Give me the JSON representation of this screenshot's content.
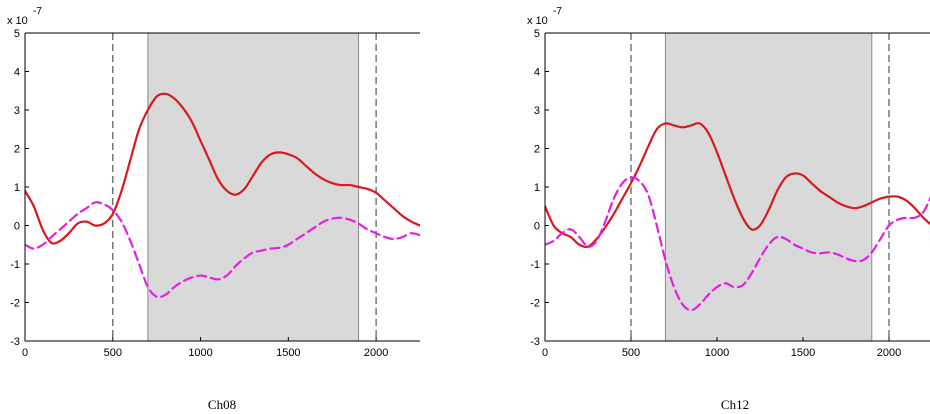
{
  "chart_data": [
    {
      "type": "line",
      "caption": "Ch08",
      "y_multiplier_base": "x 10",
      "y_multiplier_exp": "-7",
      "xlim": [
        0,
        2250
      ],
      "ylim": [
        -3,
        5
      ],
      "xticks": [
        0,
        500,
        1000,
        1500,
        2000
      ],
      "yticks": [
        -3,
        -2,
        -1,
        0,
        1,
        2,
        3,
        4,
        5
      ],
      "shaded_region": [
        700,
        1900
      ],
      "vlines": [
        500,
        2000
      ],
      "grid": false,
      "series": [
        {
          "style": "solid",
          "color": "#d71920",
          "x": [
            0,
            50,
            100,
            150,
            200,
            250,
            300,
            350,
            400,
            450,
            500,
            550,
            600,
            650,
            700,
            750,
            800,
            850,
            900,
            950,
            1000,
            1050,
            1100,
            1150,
            1200,
            1250,
            1300,
            1350,
            1400,
            1450,
            1500,
            1550,
            1600,
            1650,
            1700,
            1750,
            1800,
            1850,
            1900,
            1950,
            2000,
            2050,
            2100,
            2150,
            2200,
            2250
          ],
          "y": [
            0.9,
            0.5,
            -0.1,
            -0.45,
            -0.4,
            -0.2,
            0.05,
            0.1,
            0.0,
            0.05,
            0.3,
            0.9,
            1.7,
            2.5,
            3.0,
            3.35,
            3.42,
            3.3,
            3.05,
            2.7,
            2.2,
            1.7,
            1.2,
            0.9,
            0.8,
            0.95,
            1.3,
            1.65,
            1.85,
            1.9,
            1.85,
            1.75,
            1.55,
            1.35,
            1.2,
            1.1,
            1.05,
            1.05,
            1.0,
            0.95,
            0.85,
            0.65,
            0.45,
            0.25,
            0.1,
            0.0
          ]
        },
        {
          "style": "dashed",
          "color": "#e31fe3",
          "x": [
            0,
            50,
            100,
            150,
            200,
            250,
            300,
            350,
            400,
            450,
            500,
            550,
            600,
            650,
            700,
            750,
            800,
            850,
            900,
            950,
            1000,
            1050,
            1100,
            1150,
            1200,
            1250,
            1300,
            1350,
            1400,
            1450,
            1500,
            1550,
            1600,
            1650,
            1700,
            1750,
            1800,
            1850,
            1900,
            1950,
            2000,
            2050,
            2100,
            2150,
            2200,
            2250
          ],
          "y": [
            -0.5,
            -0.6,
            -0.5,
            -0.3,
            -0.1,
            0.1,
            0.3,
            0.45,
            0.6,
            0.55,
            0.4,
            0.1,
            -0.4,
            -1.0,
            -1.6,
            -1.85,
            -1.8,
            -1.6,
            -1.45,
            -1.35,
            -1.3,
            -1.35,
            -1.4,
            -1.3,
            -1.05,
            -0.85,
            -0.7,
            -0.65,
            -0.6,
            -0.58,
            -0.5,
            -0.35,
            -0.2,
            -0.05,
            0.1,
            0.18,
            0.2,
            0.15,
            0.05,
            -0.1,
            -0.2,
            -0.3,
            -0.35,
            -0.3,
            -0.2,
            -0.25
          ]
        }
      ]
    },
    {
      "type": "line",
      "caption": "Ch12",
      "y_multiplier_base": "x 10",
      "y_multiplier_exp": "-7",
      "xlim": [
        0,
        2250
      ],
      "ylim": [
        -3,
        5
      ],
      "xticks": [
        0,
        500,
        1000,
        1500,
        2000
      ],
      "yticks": [
        -3,
        -2,
        -1,
        0,
        1,
        2,
        3,
        4,
        5
      ],
      "shaded_region": [
        700,
        1900
      ],
      "vlines": [
        500,
        2000
      ],
      "grid": false,
      "series": [
        {
          "style": "solid",
          "color": "#d71920",
          "x": [
            0,
            50,
            100,
            150,
            200,
            250,
            300,
            350,
            400,
            450,
            500,
            550,
            600,
            650,
            700,
            750,
            800,
            850,
            900,
            950,
            1000,
            1050,
            1100,
            1150,
            1200,
            1250,
            1300,
            1350,
            1400,
            1450,
            1500,
            1550,
            1600,
            1650,
            1700,
            1750,
            1800,
            1850,
            1900,
            1950,
            2000,
            2050,
            2100,
            2150,
            2200,
            2250
          ],
          "y": [
            0.5,
            0.0,
            -0.2,
            -0.3,
            -0.5,
            -0.55,
            -0.35,
            -0.05,
            0.3,
            0.7,
            1.1,
            1.55,
            2.05,
            2.5,
            2.65,
            2.6,
            2.55,
            2.6,
            2.65,
            2.4,
            1.9,
            1.3,
            0.7,
            0.2,
            -0.1,
            0.0,
            0.4,
            0.9,
            1.25,
            1.35,
            1.3,
            1.1,
            0.9,
            0.75,
            0.6,
            0.5,
            0.45,
            0.5,
            0.6,
            0.7,
            0.75,
            0.75,
            0.65,
            0.45,
            0.2,
            0.0
          ]
        },
        {
          "style": "dashed",
          "color": "#e31fe3",
          "x": [
            0,
            50,
            100,
            150,
            200,
            250,
            300,
            350,
            400,
            450,
            500,
            550,
            600,
            650,
            700,
            750,
            800,
            850,
            900,
            950,
            1000,
            1050,
            1100,
            1150,
            1200,
            1250,
            1300,
            1350,
            1400,
            1450,
            1500,
            1550,
            1600,
            1650,
            1700,
            1750,
            1800,
            1850,
            1900,
            1950,
            2000,
            2050,
            2100,
            2150,
            2200,
            2250
          ],
          "y": [
            -0.5,
            -0.4,
            -0.2,
            -0.1,
            -0.3,
            -0.55,
            -0.4,
            0.1,
            0.7,
            1.1,
            1.25,
            1.15,
            0.8,
            0.0,
            -0.9,
            -1.6,
            -2.05,
            -2.2,
            -2.05,
            -1.8,
            -1.6,
            -1.5,
            -1.6,
            -1.55,
            -1.25,
            -0.85,
            -0.5,
            -0.3,
            -0.35,
            -0.5,
            -0.6,
            -0.7,
            -0.72,
            -0.7,
            -0.75,
            -0.85,
            -0.92,
            -0.9,
            -0.7,
            -0.35,
            0.0,
            0.15,
            0.2,
            0.2,
            0.35,
            0.8
          ]
        }
      ]
    }
  ]
}
